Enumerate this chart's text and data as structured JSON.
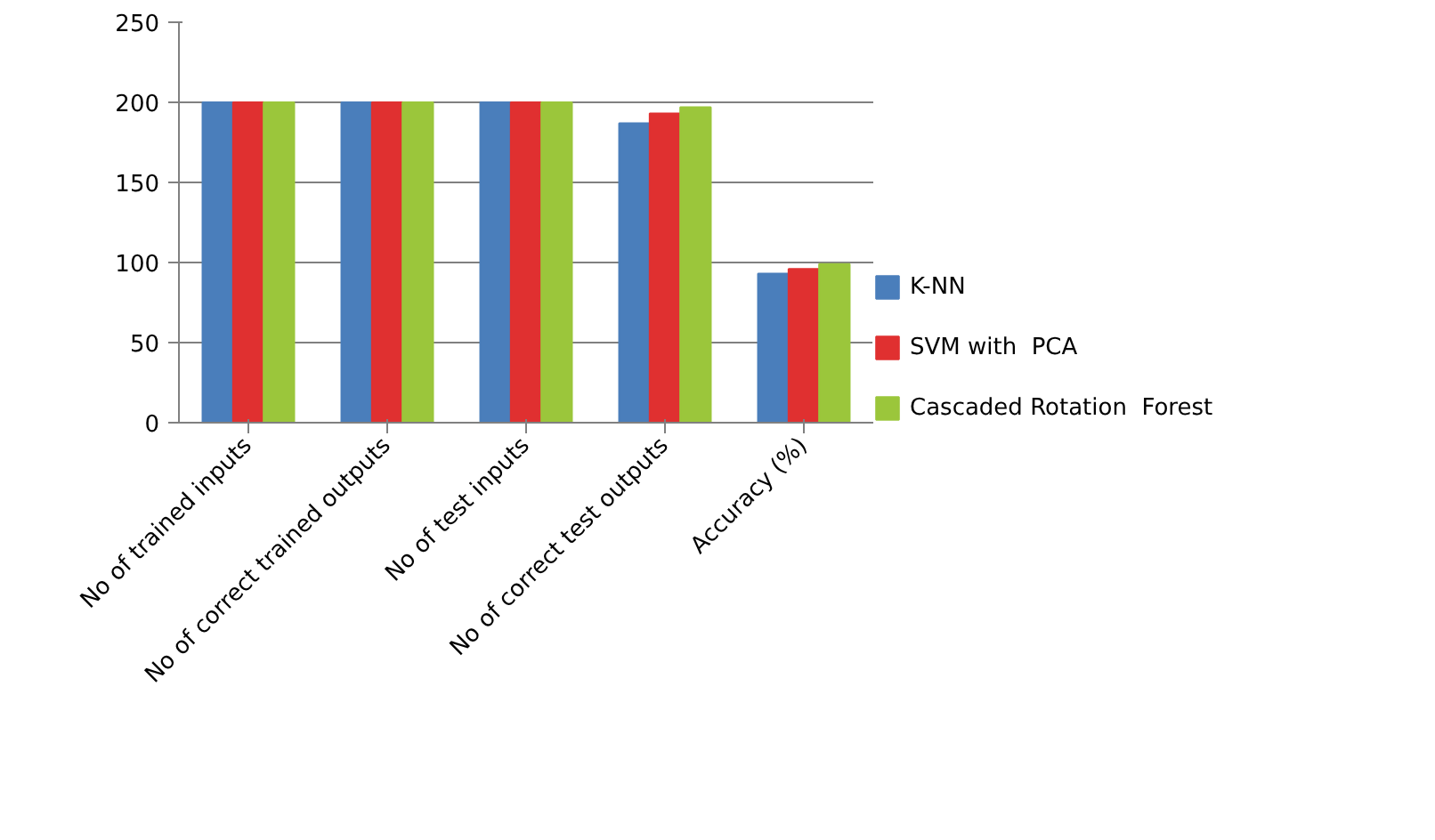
{
  "chart_data": {
    "type": "bar",
    "categories": [
      "No of trained inputs",
      "No of correct trained outputs",
      "No of test inputs",
      "No of correct test outputs",
      "Accuracy (%)"
    ],
    "series": [
      {
        "name": "K-NN",
        "color": "#4a7ebb",
        "values": [
          200,
          200,
          200,
          187,
          93
        ]
      },
      {
        "name": "SVM with  PCA",
        "color": "#e03030",
        "values": [
          200,
          200,
          200,
          193,
          96
        ]
      },
      {
        "name": "Cascaded Rotation  Forest",
        "color": "#9bc63b",
        "values": [
          200,
          200,
          200,
          197,
          99
        ]
      }
    ],
    "ylim": [
      0,
      250
    ],
    "yticks": [
      0,
      50,
      100,
      150,
      200,
      250
    ],
    "grid": "y",
    "legend": "right"
  }
}
